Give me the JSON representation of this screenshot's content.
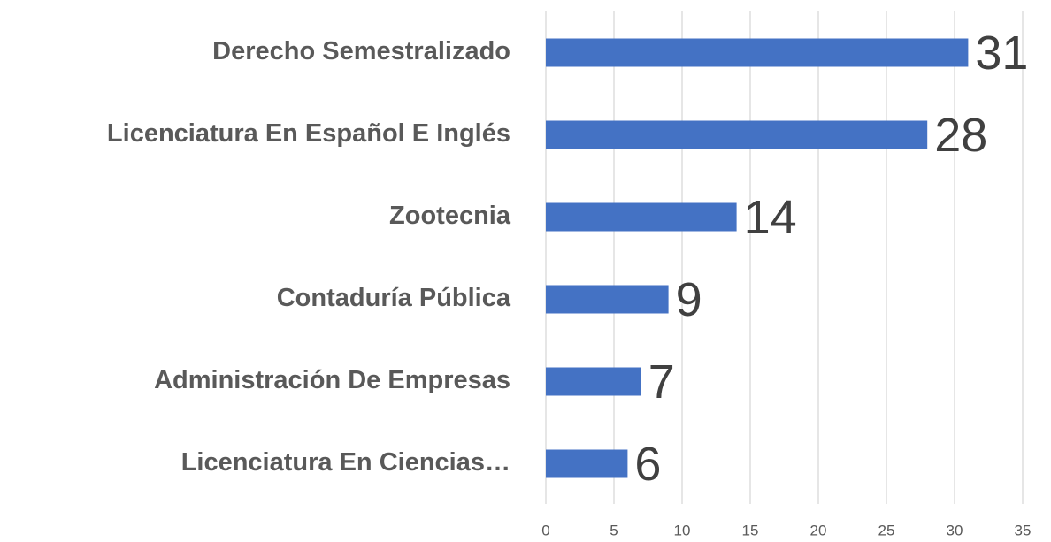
{
  "chart_data": {
    "type": "bar",
    "orientation": "horizontal",
    "categories": [
      "Derecho Semestralizado",
      "Licenciatura En Español E Inglés",
      "Zootecnia",
      "Contaduría Pública",
      "Administración De Empresas",
      "Licenciatura En Ciencias…"
    ],
    "values": [
      31,
      28,
      14,
      9,
      7,
      6
    ],
    "color": "#4472c4",
    "xlim": [
      0,
      35
    ],
    "xticks": [
      0,
      5,
      10,
      15,
      20,
      25,
      30,
      35
    ],
    "grid": true
  }
}
